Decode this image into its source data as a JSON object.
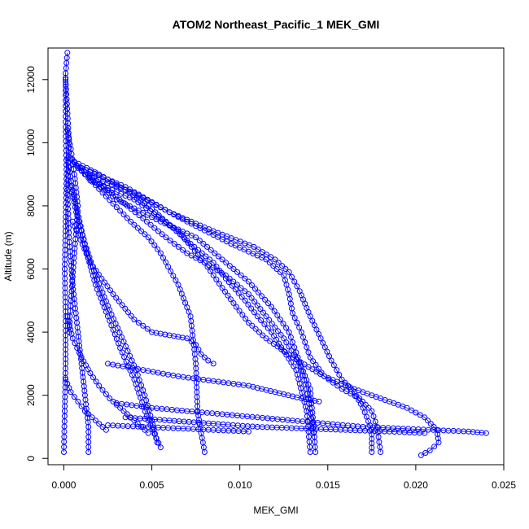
{
  "chart_data": {
    "type": "scatter",
    "title": "ATOM2 Northeast_Pacific_1 MEK_GMI",
    "xlabel": "MEK_GMI",
    "ylabel": "Altitude (m)",
    "xlim": [
      -0.0009,
      0.025
    ],
    "ylim": [
      -200,
      13000
    ],
    "x_ticks": [
      0.0,
      0.005,
      0.01,
      0.015,
      0.02,
      0.025
    ],
    "x_tick_labels": [
      "0.000",
      "0.005",
      "0.010",
      "0.015",
      "0.020",
      "0.025"
    ],
    "y_ticks": [
      0,
      2000,
      4000,
      6000,
      8000,
      10000,
      12000
    ],
    "y_tick_labels": [
      "0",
      "2000",
      "4000",
      "6000",
      "8000",
      "10000",
      "12000"
    ],
    "grid": false,
    "marker": "open-circle",
    "color": "#0000ff",
    "series": [
      {
        "x": [
          0.0,
          5e-05,
          0.0001,
          0.0001,
          5e-05,
          0.0001,
          0.00015,
          0.0001,
          0.0001,
          0.0001,
          0.0002
        ],
        "y": [
          200,
          1500,
          3000,
          4500,
          6000,
          7500,
          9000,
          10500,
          11500,
          12200,
          12850
        ]
      },
      {
        "x": [
          0.0001,
          0.0003,
          0.0002,
          0.0003,
          0.0005,
          0.0008,
          0.001,
          0.0012,
          0.0014,
          0.0014
        ],
        "y": [
          12000,
          10000,
          8500,
          7000,
          5500,
          4000,
          3000,
          2000,
          1000,
          200
        ]
      },
      {
        "x": [
          0.0002,
          0.0004,
          0.0006,
          0.0008,
          0.0006,
          0.0004,
          0.0003
        ],
        "y": [
          10400,
          9800,
          9000,
          8000,
          6500,
          5000,
          4000
        ]
      },
      {
        "x": [
          0.0002,
          0.0005,
          0.0009,
          0.0013,
          0.0018,
          0.0025,
          0.0032,
          0.004,
          0.0048,
          0.0055
        ],
        "y": [
          9500,
          8500,
          7500,
          6500,
          5500,
          4500,
          3500,
          2500,
          1200,
          350
        ]
      },
      {
        "x": [
          0.0004,
          0.0007,
          0.0012,
          0.0018,
          0.0026,
          0.0034,
          0.0041,
          0.0046,
          0.005,
          0.0053
        ],
        "y": [
          8600,
          7800,
          6800,
          5800,
          4700,
          3700,
          2800,
          2000,
          1200,
          500
        ]
      },
      {
        "x": [
          0.0004,
          0.0012,
          0.0024,
          0.0038,
          0.0048,
          0.0055,
          0.0065,
          0.0072,
          0.0075,
          0.0076,
          0.0078,
          0.008
        ],
        "y": [
          9500,
          9000,
          8300,
          7500,
          7000,
          6500,
          5500,
          4500,
          3000,
          1500,
          800,
          200
        ]
      },
      {
        "x": [
          0.0006,
          0.002,
          0.0035,
          0.0048,
          0.006,
          0.0072,
          0.0085,
          0.0092,
          0.0103,
          0.011,
          0.0118,
          0.0125,
          0.0132,
          0.0138,
          0.014
        ],
        "y": [
          9400,
          9000,
          8500,
          8000,
          7400,
          6800,
          6200,
          5700,
          5000,
          4500,
          4000,
          3400,
          2800,
          1500,
          200
        ]
      },
      {
        "x": [
          0.0007,
          0.0025,
          0.0045,
          0.0058,
          0.007,
          0.008,
          0.0092,
          0.0105,
          0.0115,
          0.0125,
          0.0135,
          0.014,
          0.0142,
          0.0143
        ],
        "y": [
          9300,
          8500,
          7600,
          7000,
          6500,
          6200,
          5800,
          5200,
          4500,
          3800,
          2900,
          2200,
          1000,
          200
        ]
      },
      {
        "x": [
          0.0008,
          0.003,
          0.0055,
          0.0075,
          0.009,
          0.0105,
          0.0118,
          0.0128,
          0.0133,
          0.0138,
          0.0142
        ],
        "y": [
          9200,
          8200,
          7500,
          7000,
          6300,
          5600,
          4800,
          4000,
          3200,
          2200,
          800
        ]
      },
      {
        "x": [
          0.001,
          0.0035,
          0.006,
          0.0085,
          0.0108,
          0.012,
          0.0128,
          0.0134,
          0.014,
          0.0146,
          0.0152,
          0.0158,
          0.0165,
          0.017,
          0.0175,
          0.0175
        ],
        "y": [
          9200,
          8600,
          7800,
          7200,
          6700,
          6300,
          5900,
          5300,
          4500,
          3800,
          3100,
          2500,
          2100,
          1600,
          900,
          200
        ]
      },
      {
        "x": [
          0.0012,
          0.004,
          0.007,
          0.0095,
          0.0115,
          0.0125,
          0.0128,
          0.013,
          0.0135,
          0.014,
          0.0148,
          0.0158,
          0.0168,
          0.0175,
          0.0178,
          0.018
        ],
        "y": [
          9000,
          8400,
          7500,
          6800,
          6300,
          5800,
          5200,
          4600,
          4000,
          3200,
          2600,
          2200,
          1900,
          1500,
          1000,
          200
        ]
      },
      {
        "x": [
          0.0015,
          0.004,
          0.0065,
          0.008,
          0.009,
          0.0098,
          0.0105,
          0.0115,
          0.013,
          0.0148,
          0.0165,
          0.018,
          0.0195,
          0.0205,
          0.0212,
          0.0213,
          0.0208,
          0.0203
        ],
        "y": [
          8800,
          8200,
          7200,
          6200,
          5400,
          4800,
          4300,
          3800,
          3200,
          2600,
          2200,
          1900,
          1600,
          1300,
          900,
          500,
          250,
          100
        ]
      },
      {
        "x": [
          0.0005,
          0.0015,
          0.0028,
          0.004,
          0.005,
          0.006,
          0.007,
          0.0075,
          0.0078,
          0.0082,
          0.0085
        ],
        "y": [
          7500,
          6200,
          5200,
          4400,
          4000,
          3900,
          3800,
          3600,
          3300,
          3100,
          3000
        ]
      },
      {
        "x": [
          0.0002,
          0.0005,
          0.001,
          0.0015,
          0.002,
          0.0026,
          0.0032,
          0.0038,
          0.0044,
          0.0048
        ],
        "y": [
          4500,
          3800,
          3200,
          2700,
          2300,
          1900,
          1600,
          1300,
          1000,
          800
        ]
      },
      {
        "x": [
          0.0001,
          0.0004,
          0.0008,
          0.0012,
          0.0016,
          0.002,
          0.0024
        ],
        "y": [
          2500,
          2100,
          1800,
          1500,
          1300,
          1100,
          900
        ]
      },
      {
        "x": [
          0.0025,
          0.0045,
          0.0065,
          0.0085,
          0.0105,
          0.012,
          0.0135,
          0.0145
        ],
        "y": [
          3000,
          2800,
          2600,
          2450,
          2300,
          2100,
          1900,
          1800
        ]
      },
      {
        "x": [
          0.003,
          0.005,
          0.007,
          0.009,
          0.011,
          0.013,
          0.015,
          0.017,
          0.019,
          0.021,
          0.023,
          0.024
        ],
        "y": [
          1750,
          1600,
          1500,
          1400,
          1300,
          1200,
          1100,
          1000,
          950,
          900,
          850,
          800
        ]
      },
      {
        "x": [
          0.0035,
          0.006,
          0.0085,
          0.011,
          0.0135,
          0.016,
          0.0185,
          0.0205
        ],
        "y": [
          1300,
          1200,
          1100,
          1000,
          950,
          900,
          850,
          800
        ]
      },
      {
        "x": [
          0.0025,
          0.0045,
          0.0065,
          0.0085,
          0.0105
        ],
        "y": [
          1050,
          1000,
          950,
          900,
          850
        ]
      }
    ]
  }
}
